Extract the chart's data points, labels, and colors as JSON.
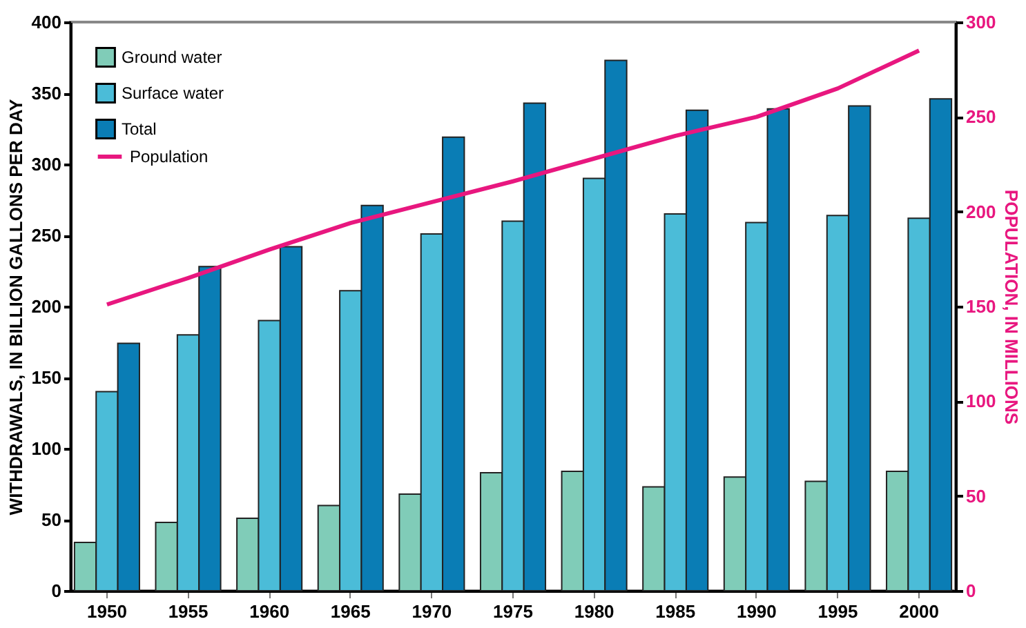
{
  "chart_data": {
    "type": "bar",
    "categories": [
      "1950",
      "1955",
      "1960",
      "1965",
      "1970",
      "1975",
      "1980",
      "1985",
      "1990",
      "1995",
      "2000"
    ],
    "ylabel": "WITHDRAWALS, IN BILLION GALLONS PER DAY",
    "y2label": "POPULATION, IN MILLIONS",
    "ylim": [
      0,
      400
    ],
    "yticks": [
      0,
      50,
      100,
      150,
      200,
      250,
      300,
      350,
      400
    ],
    "y2lim": [
      0,
      300
    ],
    "y2ticks": [
      0,
      50,
      100,
      150,
      200,
      250,
      300
    ],
    "grid": false,
    "legend": "top left",
    "series": [
      {
        "name": "Ground water",
        "color": "#80ccb8",
        "values": [
          34,
          48,
          51,
          60,
          68,
          83,
          84,
          73,
          80,
          77,
          84
        ]
      },
      {
        "name": "Surface water",
        "color": "#4bbcd8",
        "values": [
          140,
          180,
          190,
          211,
          251,
          260,
          290,
          265,
          259,
          264,
          262
        ]
      },
      {
        "name": "Total",
        "color": "#0a7db5",
        "values": [
          174,
          228,
          242,
          271,
          319,
          343,
          373,
          338,
          339,
          341,
          346
        ]
      },
      {
        "name": "Population",
        "color": "#e8177f",
        "type": "line",
        "axis": "y2",
        "marker": "none",
        "line_style": "solid",
        "values": [
          151,
          165,
          180,
          194,
          205,
          216,
          228,
          240,
          250,
          265,
          285
        ]
      }
    ]
  }
}
